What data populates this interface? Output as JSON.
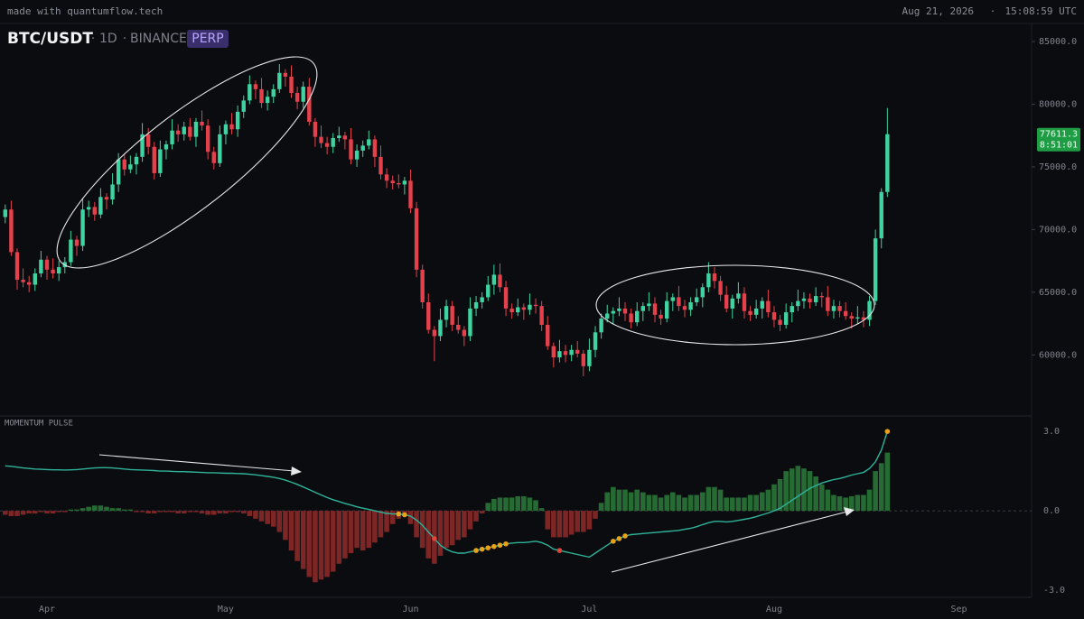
{
  "header": {
    "source": "made with quantumflow.tech",
    "date": "Aug 21, 2026",
    "separator": "·",
    "time": "15:08:59 UTC"
  },
  "chart_data": [
    {
      "type": "candlestick",
      "title": "BTC/USDT",
      "interval": "1D",
      "exchange": "BINANCE",
      "contract": "PERP",
      "countdown": "8:51:01",
      "up_color": "#3ed3a0",
      "down_color": "#e5414c",
      "xlim": [
        -0.88,
        172.2
      ],
      "ylim": [
        55200,
        86300
      ],
      "yticks": [
        {
          "value": 60000,
          "label": "60000.0"
        },
        {
          "value": 65000,
          "label": "65000.0"
        },
        {
          "value": 70000,
          "label": "70000.0"
        },
        {
          "value": 75000,
          "label": "75000.0"
        },
        {
          "value": 80000,
          "label": "80000.0"
        },
        {
          "value": 85000,
          "label": "85000.0"
        }
      ],
      "open": [
        71000,
        71600,
        68200,
        66000,
        65800,
        65600,
        66500,
        67600,
        66800,
        66500,
        67000,
        67400,
        69200,
        68700,
        71600,
        71800,
        71200,
        72600,
        72400,
        73600,
        75600,
        74800,
        75200,
        75800,
        77600,
        76600,
        74500,
        76400,
        76800,
        77900,
        77600,
        78200,
        77400,
        78600,
        78300,
        76200,
        75300,
        77600,
        78400,
        78000,
        79400,
        80300,
        81600,
        81200,
        80100,
        80600,
        81200,
        82500,
        82200,
        80900,
        80200,
        81400,
        78600,
        77400,
        76900,
        76600,
        77300,
        77500,
        77200,
        75600,
        76300,
        76700,
        77200,
        75800,
        74400,
        73900,
        73700,
        73600,
        73900,
        71700,
        66800,
        64200,
        62000,
        61500,
        62800,
        63900,
        62400,
        62000,
        61500,
        63700,
        64200,
        64600,
        65600,
        66400,
        65400,
        63700,
        63400,
        63800,
        63600,
        64000,
        63900,
        62400,
        60700,
        59800,
        60300,
        60000,
        60400,
        60100,
        59100,
        60400,
        61800,
        62900,
        63300,
        63500,
        63700,
        63300,
        62600,
        63500,
        63900,
        64100,
        63200,
        62900,
        64300,
        64600,
        63900,
        63600,
        64200,
        64600,
        65400,
        66500,
        65900,
        64800,
        63700,
        64500,
        64900,
        63500,
        63200,
        63700,
        64300,
        63400,
        62800,
        62400,
        63400,
        63900,
        64300,
        64500,
        64200,
        64700,
        64600,
        63500,
        63900,
        63500,
        63100,
        62900,
        63000,
        62800,
        64300,
        69300,
        73000
      ],
      "high": [
        72000,
        72300,
        68500,
        66900,
        66300,
        66900,
        68300,
        67900,
        67700,
        67500,
        67800,
        69900,
        69500,
        72500,
        72300,
        72200,
        73300,
        72900,
        74500,
        76100,
        76000,
        75900,
        76100,
        78500,
        78100,
        77000,
        77100,
        77100,
        78800,
        78400,
        78600,
        78900,
        78900,
        79500,
        78800,
        76600,
        78300,
        78700,
        79300,
        79900,
        80700,
        82300,
        81900,
        82100,
        81100,
        81600,
        83200,
        82800,
        83100,
        81400,
        81800,
        82100,
        78900,
        78300,
        77400,
        77700,
        78200,
        77800,
        78100,
        76800,
        77100,
        77900,
        77500,
        76700,
        74900,
        74300,
        74400,
        74200,
        74800,
        72200,
        67200,
        64900,
        62300,
        63700,
        64400,
        64300,
        63100,
        62300,
        64600,
        64700,
        65000,
        66300,
        67200,
        67300,
        65900,
        64100,
        64500,
        64100,
        64900,
        64500,
        64300,
        63100,
        61000,
        61200,
        60800,
        60800,
        61100,
        60400,
        61300,
        62300,
        63300,
        64000,
        63800,
        64600,
        64200,
        63700,
        64200,
        64200,
        65000,
        64600,
        63600,
        65000,
        64900,
        65500,
        64400,
        64600,
        65300,
        65700,
        67400,
        67000,
        66300,
        65500,
        64800,
        65800,
        65400,
        63900,
        64400,
        64600,
        65200,
        63900,
        63200,
        64100,
        64200,
        65200,
        65000,
        64900,
        65400,
        65000,
        65500,
        64400,
        64300,
        64200,
        63400,
        63900,
        63500,
        64700,
        70000,
        73300,
        79700
      ],
      "low": [
        70500,
        67900,
        65200,
        65400,
        65000,
        65100,
        66200,
        66000,
        66100,
        65900,
        66500,
        67100,
        67900,
        68300,
        71000,
        70700,
        70900,
        71600,
        72000,
        73000,
        74300,
        74500,
        74400,
        75400,
        76000,
        74000,
        74200,
        75600,
        76400,
        77000,
        77100,
        77100,
        76600,
        77900,
        75600,
        74800,
        75000,
        76800,
        77600,
        77400,
        78900,
        80000,
        80400,
        79700,
        79500,
        80100,
        80900,
        81400,
        80500,
        79600,
        79700,
        78300,
        76600,
        76500,
        76000,
        76100,
        77000,
        76400,
        75200,
        75000,
        75800,
        76400,
        75000,
        74000,
        73300,
        73200,
        73300,
        72800,
        71300,
        66200,
        63700,
        61700,
        59500,
        61100,
        62200,
        61900,
        61700,
        60700,
        61100,
        63100,
        63700,
        64300,
        64800,
        65000,
        63100,
        62900,
        63100,
        62800,
        63200,
        63300,
        61900,
        60400,
        59000,
        59400,
        59400,
        59500,
        59800,
        58300,
        58700,
        59800,
        61300,
        62600,
        62500,
        63100,
        62700,
        62100,
        62300,
        62700,
        63500,
        62600,
        62400,
        62600,
        63500,
        63500,
        63000,
        63100,
        63900,
        63800,
        65000,
        65300,
        64300,
        63400,
        62900,
        64100,
        62900,
        62700,
        62900,
        62900,
        63000,
        62200,
        61900,
        62100,
        62600,
        63500,
        63700,
        63700,
        63900,
        63800,
        63100,
        62900,
        63000,
        62800,
        62100,
        62500,
        62200,
        62300,
        64000,
        68500,
        72600
      ],
      "close": [
        71600,
        68200,
        66000,
        65800,
        65600,
        66500,
        67600,
        66800,
        66500,
        67000,
        67400,
        69200,
        68700,
        71600,
        71800,
        71200,
        72600,
        72400,
        73600,
        75600,
        74800,
        75200,
        75800,
        77600,
        76600,
        74500,
        76400,
        76800,
        77900,
        77600,
        78200,
        77400,
        78600,
        78300,
        76200,
        75300,
        77600,
        78400,
        78000,
        79400,
        80300,
        81600,
        81200,
        80100,
        80600,
        81200,
        82500,
        82200,
        80900,
        80200,
        81400,
        78600,
        77400,
        76900,
        76600,
        77300,
        77500,
        77200,
        75600,
        76300,
        76700,
        77200,
        75800,
        74400,
        73900,
        73700,
        73600,
        73900,
        71700,
        66800,
        64200,
        62000,
        61500,
        62800,
        63900,
        62400,
        62000,
        61500,
        63700,
        64200,
        64600,
        65600,
        66400,
        65400,
        63700,
        63400,
        63800,
        63600,
        64000,
        63900,
        62400,
        60700,
        59800,
        60300,
        60000,
        60400,
        60100,
        59100,
        60400,
        61800,
        62900,
        63300,
        63500,
        63700,
        63300,
        62600,
        63500,
        63900,
        64100,
        63200,
        62900,
        64300,
        64600,
        63900,
        63600,
        64200,
        64600,
        65400,
        66500,
        65900,
        64800,
        63700,
        64500,
        64900,
        63500,
        63200,
        63700,
        64300,
        63400,
        62800,
        62400,
        63400,
        63900,
        64300,
        64500,
        64200,
        64700,
        64600,
        63500,
        63900,
        63500,
        63100,
        62900,
        63000,
        62800,
        64300,
        69300,
        73000,
        77611.3
      ]
    },
    {
      "type": "momentum",
      "title": "MOMENTUM PULSE",
      "xlim": [
        -0.88,
        172.2
      ],
      "ylim": [
        -3.27,
        3.55
      ],
      "xticks": [
        {
          "value": 7,
          "label": "Apr"
        },
        {
          "value": 37,
          "label": "May"
        },
        {
          "value": 68,
          "label": "Jun"
        },
        {
          "value": 98,
          "label": "Jul"
        },
        {
          "value": 129,
          "label": "Aug"
        },
        {
          "value": 160,
          "label": "Sep"
        }
      ],
      "yticks": [
        {
          "value": -3,
          "label": "-3.0"
        },
        {
          "value": 0,
          "label": "0.0"
        },
        {
          "value": 3,
          "label": "3.0"
        }
      ],
      "histogram": {
        "up_color": "#276b34",
        "down_color": "#7c2626",
        "values": [
          -0.15,
          -0.2,
          -0.2,
          -0.15,
          -0.1,
          -0.1,
          -0.05,
          -0.1,
          -0.1,
          -0.05,
          -0.05,
          0.05,
          0.05,
          0.1,
          0.15,
          0.2,
          0.2,
          0.15,
          0.1,
          0.1,
          0.05,
          0.05,
          -0.05,
          -0.05,
          -0.1,
          -0.1,
          -0.05,
          -0.05,
          -0.05,
          -0.1,
          -0.1,
          -0.05,
          -0.05,
          -0.1,
          -0.15,
          -0.15,
          -0.1,
          -0.1,
          -0.05,
          -0.05,
          -0.1,
          -0.2,
          -0.3,
          -0.4,
          -0.5,
          -0.6,
          -0.8,
          -1.1,
          -1.5,
          -1.9,
          -2.2,
          -2.5,
          -2.7,
          -2.6,
          -2.5,
          -2.3,
          -2.0,
          -1.8,
          -1.6,
          -1.4,
          -1.5,
          -1.4,
          -1.2,
          -1.0,
          -0.8,
          -0.5,
          -0.3,
          -0.2,
          -0.5,
          -1.0,
          -1.4,
          -1.8,
          -2.0,
          -1.7,
          -1.4,
          -1.3,
          -1.1,
          -1.0,
          -0.7,
          -0.4,
          -0.1,
          0.3,
          0.45,
          0.5,
          0.5,
          0.5,
          0.55,
          0.55,
          0.5,
          0.4,
          0.1,
          -0.7,
          -1.0,
          -1.0,
          -1.0,
          -0.9,
          -0.8,
          -0.8,
          -0.7,
          -0.3,
          0.3,
          0.7,
          0.9,
          0.8,
          0.8,
          0.7,
          0.8,
          0.7,
          0.6,
          0.6,
          0.5,
          0.6,
          0.7,
          0.6,
          0.5,
          0.6,
          0.6,
          0.7,
          0.9,
          0.9,
          0.8,
          0.5,
          0.5,
          0.5,
          0.5,
          0.6,
          0.6,
          0.7,
          0.8,
          1.0,
          1.2,
          1.5,
          1.6,
          1.7,
          1.6,
          1.5,
          1.3,
          1.0,
          0.8,
          0.6,
          0.55,
          0.5,
          0.55,
          0.6,
          0.6,
          0.8,
          1.5,
          1.8,
          2.2
        ]
      },
      "line": {
        "color": "#2fb39b",
        "values": [
          1.7,
          1.68,
          1.65,
          1.62,
          1.6,
          1.58,
          1.57,
          1.56,
          1.55,
          1.55,
          1.54,
          1.55,
          1.56,
          1.58,
          1.6,
          1.62,
          1.63,
          1.63,
          1.62,
          1.6,
          1.58,
          1.56,
          1.55,
          1.54,
          1.53,
          1.52,
          1.5,
          1.5,
          1.49,
          1.48,
          1.48,
          1.47,
          1.46,
          1.45,
          1.44,
          1.44,
          1.43,
          1.42,
          1.42,
          1.41,
          1.4,
          1.38,
          1.36,
          1.33,
          1.3,
          1.27,
          1.22,
          1.16,
          1.08,
          1.0,
          0.9,
          0.8,
          0.7,
          0.6,
          0.5,
          0.42,
          0.35,
          0.28,
          0.22,
          0.15,
          0.1,
          0.05,
          0.0,
          -0.05,
          -0.1,
          -0.12,
          -0.12,
          -0.15,
          -0.2,
          -0.35,
          -0.55,
          -0.8,
          -1.05,
          -1.3,
          -1.45,
          -1.55,
          -1.6,
          -1.6,
          -1.55,
          -1.5,
          -1.45,
          -1.4,
          -1.35,
          -1.3,
          -1.25,
          -1.22,
          -1.2,
          -1.2,
          -1.18,
          -1.15,
          -1.2,
          -1.3,
          -1.45,
          -1.5,
          -1.55,
          -1.6,
          -1.65,
          -1.7,
          -1.75,
          -1.6,
          -1.45,
          -1.3,
          -1.15,
          -1.05,
          -0.95,
          -0.9,
          -0.88,
          -0.86,
          -0.84,
          -0.82,
          -0.8,
          -0.78,
          -0.76,
          -0.74,
          -0.7,
          -0.66,
          -0.6,
          -0.52,
          -0.45,
          -0.4,
          -0.4,
          -0.42,
          -0.4,
          -0.36,
          -0.32,
          -0.28,
          -0.22,
          -0.15,
          -0.08,
          0.0,
          0.1,
          0.25,
          0.4,
          0.55,
          0.7,
          0.85,
          0.95,
          1.05,
          1.12,
          1.18,
          1.22,
          1.28,
          1.35,
          1.4,
          1.45,
          1.6,
          1.85,
          2.3,
          3.0
        ]
      },
      "dots": [
        {
          "index": 66,
          "color": "#e8a21a"
        },
        {
          "index": 67,
          "color": "#e8a21a"
        },
        {
          "index": 72,
          "color": "#e0453a"
        },
        {
          "index": 79,
          "color": "#e8a21a"
        },
        {
          "index": 80,
          "color": "#e8a21a"
        },
        {
          "index": 81,
          "color": "#e8a21a"
        },
        {
          "index": 82,
          "color": "#e8a21a"
        },
        {
          "index": 83,
          "color": "#e8a21a"
        },
        {
          "index": 84,
          "color": "#e8a21a"
        },
        {
          "index": 93,
          "color": "#e0453a"
        },
        {
          "index": 102,
          "color": "#e8a21a"
        },
        {
          "index": 103,
          "color": "#e8a21a"
        },
        {
          "index": 104,
          "color": "#e8a21a"
        },
        {
          "index": 148,
          "color": "#e8a21a"
        }
      ]
    }
  ]
}
